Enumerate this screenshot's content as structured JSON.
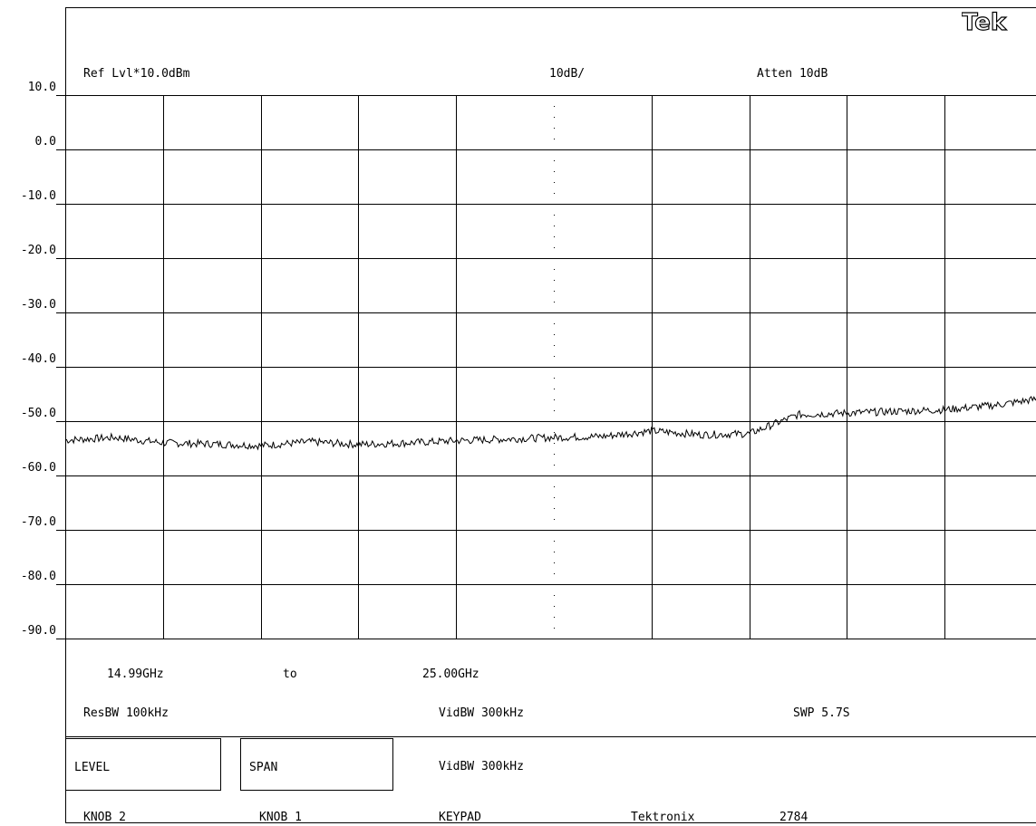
{
  "brand": "Tek",
  "header": {
    "ref_level": "Ref Lvl*10.0dBm",
    "scale": "10dB/",
    "attenuation": "Atten 10dB"
  },
  "footer": {
    "start_freq": "14.99GHz",
    "to": "to",
    "stop_freq": "25.00GHz",
    "res_bw": "ResBW 100kHz",
    "vid_bw": "VidBW 300kHz",
    "sweep": "SWP 5.7S",
    "softkey_level": "LEVEL",
    "softkey_span": "SPAN",
    "status_vid_bw": "VidBW 300kHz",
    "knob2": "KNOB 2",
    "knob1": "KNOB 1",
    "keypad": "KEYPAD",
    "maker": "Tektronix",
    "model": "2784"
  },
  "colors": {
    "trace": "#000000",
    "grid": "#000000",
    "background": "#ffffff"
  },
  "chart_data": {
    "type": "line",
    "title": "",
    "xlabel": "",
    "ylabel": "",
    "xlim": [
      14.99,
      25.0
    ],
    "ylim": [
      -90,
      10
    ],
    "y_ticks": [
      "10.0",
      "0.0",
      "-10.0",
      "-20.0",
      "-30.0",
      "-40.0",
      "-50.0",
      "-60.0",
      "-70.0",
      "-80.0",
      "-90.0"
    ],
    "grid": true,
    "x_divisions": 10,
    "y_divisions": 10,
    "dotted_reference_level": -40,
    "series": [
      {
        "x": [
          14.99,
          15.5,
          16.0,
          16.5,
          17.0,
          17.5,
          18.0,
          18.5,
          19.0,
          19.5,
          20.0,
          20.5,
          21.0,
          21.5,
          22.0,
          22.5,
          23.0,
          23.5,
          24.0,
          24.5,
          25.0
        ],
        "values": [
          -53.5,
          -53.0,
          -54.0,
          -54.2,
          -54.5,
          -53.8,
          -54.3,
          -54.0,
          -53.6,
          -53.3,
          -53.0,
          -52.8,
          -51.8,
          -52.5,
          -52.3,
          -48.8,
          -48.5,
          -48.2,
          -47.9,
          -47.1,
          -45.8
        ]
      }
    ]
  }
}
